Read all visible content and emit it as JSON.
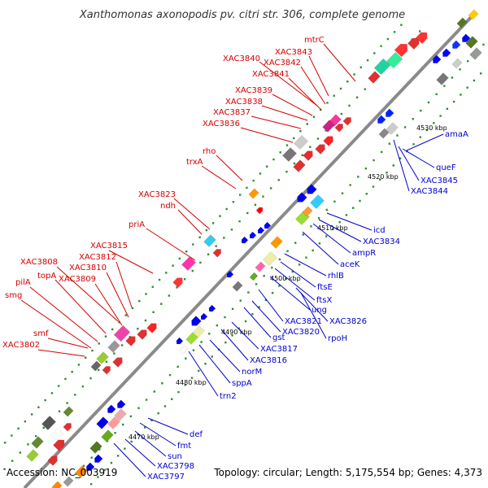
{
  "title": "Xanthomonas axonopodis pv. citri str. 306, complete genome",
  "footer": {
    "accession": "Accession: NC_003919",
    "topology": "Topology: circular; Length: 5,175,554 bp; Genes: 4,373"
  },
  "colors": {
    "backbone": "#888888",
    "plus_label": "#d40000",
    "minus_label": "#0000cc",
    "tick_dot": "#2f8f2f"
  },
  "ticks": [
    {
      "label": "4470 kbp",
      "kbp": 4470
    },
    {
      "label": "4480 kbp",
      "kbp": 4480
    },
    {
      "label": "4490 kbp",
      "kbp": 4490
    },
    {
      "label": "4500 kbp",
      "kbp": 4500
    },
    {
      "label": "4510 kbp",
      "kbp": 4510
    },
    {
      "label": "4520 kbp",
      "kbp": 4520
    },
    {
      "label": "4530 kbp",
      "kbp": 4530
    }
  ],
  "labels_plus": [
    "mtrC",
    "XAC3843",
    "XAC3840",
    "XAC3842",
    "XAC3841",
    "XAC3839",
    "XAC3838",
    "XAC3837",
    "XAC3836",
    "rho",
    "trxA",
    "XAC3823",
    "ndh",
    "priA",
    "XAC3815",
    "XAC3808",
    "XAC3812",
    "topA",
    "XAC3810",
    "XAC3809",
    "pilA",
    "smg",
    "smf",
    "XAC3802"
  ],
  "labels_minus": [
    "amaA",
    "queF",
    "XAC3845",
    "XAC3844",
    "icd",
    "XAC3834",
    "ampR",
    "aceK",
    "rhlB",
    "ftsE",
    "ftsX",
    "ung",
    "XAC3826",
    "XAC3821",
    "XAC3820",
    "rpoH",
    "gst",
    "XAC3817",
    "XAC3816",
    "norM",
    "sppA",
    "trn2",
    "def",
    "fmt",
    "sun",
    "XAC3798",
    "XAC3797"
  ]
}
